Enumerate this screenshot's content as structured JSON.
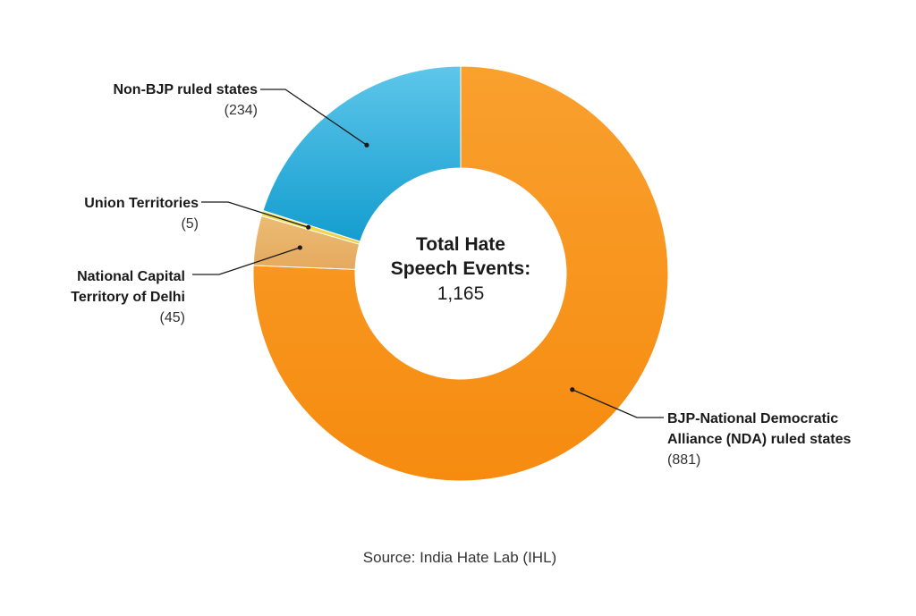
{
  "chart_data": {
    "type": "pie",
    "donut": true,
    "center_title_lines": [
      "Total Hate",
      "Speech Events:"
    ],
    "center_value": "1,165",
    "slices": [
      {
        "label_lines": [
          "BJP-National Democratic",
          "Alliance (NDA) ruled states"
        ],
        "value_label": "(881)",
        "value": 881,
        "color": "#f7941d"
      },
      {
        "label_lines": [
          "National Capital",
          "Territory of Delhi"
        ],
        "value_label": "(45)",
        "value": 45,
        "color": "#e8b267"
      },
      {
        "label_lines": [
          "Union Territories"
        ],
        "value_label": "(5)",
        "value": 5,
        "color": "#f2d84b"
      },
      {
        "label_lines": [
          "Non-BJP ruled states"
        ],
        "value_label": "(234)",
        "value": 234,
        "color": "#1fa7d6"
      }
    ],
    "legend": "callout-labels"
  },
  "source": "Source: India Hate Lab (IHL)"
}
